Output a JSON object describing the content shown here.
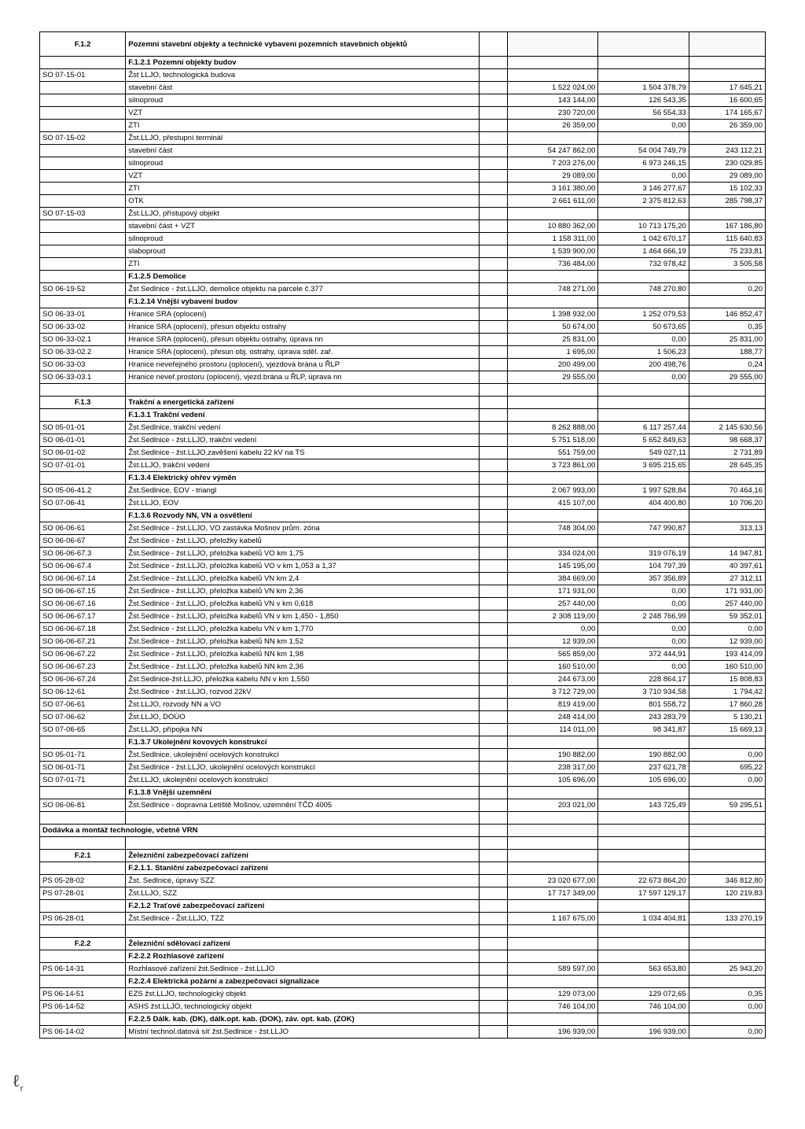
{
  "rows": [
    {
      "type": "header2",
      "code": "F.1.2",
      "desc": "Pozemní stavební objekty a technické vybavení pozemních stavebních objektů",
      "shaded": true
    },
    {
      "type": "sub",
      "desc": "F.1.2.1 Pozemní objekty budov",
      "bold": true
    },
    {
      "type": "data",
      "code": "SO 07-15-01",
      "desc": "Žst LLJO, technologická budova"
    },
    {
      "type": "data",
      "desc": "stavební část",
      "v1": "1 522 024,00",
      "v2": "1 504 378,79",
      "v3": "17 645,21"
    },
    {
      "type": "data",
      "desc": "silnoproud",
      "v1": "143 144,00",
      "v2": "126 543,35",
      "v3": "16 600,65"
    },
    {
      "type": "data",
      "desc": "VZT",
      "v1": "230 720,00",
      "v2": "56 554,33",
      "v3": "174 165,67"
    },
    {
      "type": "data",
      "desc": "ZTI",
      "v1": "26 359,00",
      "v2": "0,00",
      "v3": "26 359,00"
    },
    {
      "type": "data",
      "code": "SO 07-15-02",
      "desc": "Žst.LLJO, přestupní terminál"
    },
    {
      "type": "data",
      "desc": "stavební část",
      "v1": "54 247 862,00",
      "v2": "54 004 749,79",
      "v3": "243 112,21"
    },
    {
      "type": "data",
      "desc": "silnoproud",
      "v1": "7 203 276,00",
      "v2": "6 973 246,15",
      "v3": "230 029,85"
    },
    {
      "type": "data",
      "desc": "VZT",
      "v1": "29 089,00",
      "v2": "0,00",
      "v3": "29 089,00"
    },
    {
      "type": "data",
      "desc": "ZTI",
      "v1": "3 161 380,00",
      "v2": "3 146 277,67",
      "v3": "15 102,33"
    },
    {
      "type": "data",
      "desc": "OTK",
      "v1": "2 661 611,00",
      "v2": "2 375 812,63",
      "v3": "285 798,37"
    },
    {
      "type": "data",
      "code": "SO 07-15-03",
      "desc": "Žst.LLJO, přístupový objekt"
    },
    {
      "type": "data",
      "desc": "stavební část + VZT",
      "v1": "10 880 362,00",
      "v2": "10 713 175,20",
      "v3": "167 186,80"
    },
    {
      "type": "data",
      "desc": "silnoproud",
      "v1": "1 158 311,00",
      "v2": "1 042 670,17",
      "v3": "115 640,83"
    },
    {
      "type": "data",
      "desc": "slaboproud",
      "v1": "1 539 900,00",
      "v2": "1 464 666,19",
      "v3": "75 233,81"
    },
    {
      "type": "data",
      "desc": "ZTI",
      "v1": "736 484,00",
      "v2": "732 978,42",
      "v3": "3 505,58"
    },
    {
      "type": "sub",
      "desc": "F.1.2.5 Demolice",
      "bold": true
    },
    {
      "type": "data",
      "code": "SO 06-19-52",
      "desc": "Žst Sedlnice - žst.LLJO, demolice objektu na parcele č.377",
      "v1": "748 271,00",
      "v2": "748 270,80",
      "v3": "0,20"
    },
    {
      "type": "sub",
      "desc": "F.1.2.14 Vnější vybavení budov",
      "bold": true
    },
    {
      "type": "data",
      "code": "SO 06-33-01",
      "desc": "Hranice SRA (oplocení)",
      "v1": "1 398 932,00",
      "v2": "1 252 079,53",
      "v3": "146 852,47"
    },
    {
      "type": "data",
      "code": "SO 06-33-02",
      "desc": "Hranice SRA (oplocení), přesun objektu ostrahy",
      "v1": "50 674,00",
      "v2": "50 673,65",
      "v3": "0,35"
    },
    {
      "type": "data",
      "code": "SO 06-33-02.1",
      "desc": "Hranice SRA (oplocení), přesun objektu ostrahy, úprava nn",
      "v1": "25 831,00",
      "v2": "0,00",
      "v3": "25 831,00"
    },
    {
      "type": "data",
      "code": "SO 06-33-02.2",
      "desc": "Hranice SRA (oplocení), přesun obj. ostrahy, úprava sděl. zař.",
      "v1": "1 695,00",
      "v2": "1 506,23",
      "v3": "188,77"
    },
    {
      "type": "data",
      "code": "SO 06-33-03",
      "desc": "Hranice neveřejného prostoru (oplocení), vjezdová brána u ŘLP",
      "v1": "200 499,00",
      "v2": "200 498,76",
      "v3": "0,24"
    },
    {
      "type": "data",
      "code": "SO 06-33-03.1",
      "desc": "Hranice neveř.prostoru (oplocení), vjezd.brána u ŘLP, úprava nn",
      "v1": "29 555,00",
      "v2": "0,00",
      "v3": "29 555,00"
    },
    {
      "type": "blank"
    },
    {
      "type": "header1",
      "code": "F.1.3",
      "desc": "Trakční a energetická zařízení"
    },
    {
      "type": "sub",
      "desc": "F.1.3.1 Trakční vedení",
      "bold": true
    },
    {
      "type": "data",
      "code": "SO 05-01-01",
      "desc": "Žst.Sedlnice, trakční vedení",
      "v1": "8 262 888,00",
      "v2": "6 117 257,44",
      "v3": "2 145 630,56"
    },
    {
      "type": "data",
      "code": "SO 06-01-01",
      "desc": "Žst.Sedlnice - žst.LLJO, trakční vedení",
      "v1": "5 751 518,00",
      "v2": "5 652 849,63",
      "v3": "98 668,37"
    },
    {
      "type": "data",
      "code": "SO 06-01-02",
      "desc": "Žst.Sedlnice - žst.LLJO,zavěšení kabelu 22 kV na TS",
      "v1": "551 759,00",
      "v2": "549 027,11",
      "v3": "2 731,89"
    },
    {
      "type": "data",
      "code": "SO 07-01-01",
      "desc": "Žst.LLJO, trakční vedení",
      "v1": "3 723 861,00",
      "v2": "3 695 215,65",
      "v3": "28 645,35"
    },
    {
      "type": "sub",
      "desc": "F.1.3.4 Elektrický ohřev výměn",
      "bold": true
    },
    {
      "type": "data",
      "code": "SO 05-06-41.2",
      "desc": "Žst.Sedlnice, EOV - triangl",
      "v1": "2 067 993,00",
      "v2": "1 997 528,84",
      "v3": "70 464,16"
    },
    {
      "type": "data",
      "code": "SO 07-06-41",
      "desc": "Žst.LLJO, EOV",
      "v1": "415 107,00",
      "v2": "404 400,80",
      "v3": "10 706,20"
    },
    {
      "type": "sub",
      "desc": "F.1.3.6 Rozvody NN, VN a osvětlení",
      "bold": true
    },
    {
      "type": "data",
      "code": "SO 06-06-61",
      "desc": "Žst.Sedlnice - žst.LLJO, VO zastávka Mošnov prům. zóna",
      "v1": "748 304,00",
      "v2": "747 990,87",
      "v3": "313,13"
    },
    {
      "type": "data",
      "code": "SO 06-06-67",
      "desc": "Žst.Sedlnice - žst.LLJO, přeložky kabelů"
    },
    {
      "type": "data",
      "code": "SO 06-06-67.3",
      "desc": "Žst.Sedlnice - žst.LLJO, přeložka kabelů VO km 1,75",
      "v1": "334 024,00",
      "v2": "319 076,19",
      "v3": "14 947,81"
    },
    {
      "type": "data",
      "code": "SO 06-06-67.4",
      "desc": "Žst.Sedlnice - žst.LLJO, přeložka kabelů VO v km 1,053 a 1,37",
      "v1": "145 195,00",
      "v2": "104 797,39",
      "v3": "40 397,61"
    },
    {
      "type": "data",
      "code": "SO 06-06-67.14",
      "desc": "Žst.Sedlnice - žst.LLJO, přeložka kabelů VN km 2,4",
      "v1": "384 669,00",
      "v2": "357 356,89",
      "v3": "27 312,11"
    },
    {
      "type": "data",
      "code": "SO 06-06-67.15",
      "desc": "Žst.Sedlnice - žst.LLJO, přeložka kabelů VN km 2,36",
      "v1": "171 931,00",
      "v2": "0,00",
      "v3": "171 931,00"
    },
    {
      "type": "data",
      "code": "SO 06-06-67.16",
      "desc": "Žst.Sedlnice - žst.LLJO, přeložka kabelů VN v km 0,618",
      "v1": "257 440,00",
      "v2": "0,00",
      "v3": "257 440,00"
    },
    {
      "type": "data",
      "code": "SO 06-06-67.17",
      "desc": "Žst.Sedlnice - žst.LLJO, přeložka kabelů VN v km 1,450 - 1,850",
      "v1": "2 308 119,00",
      "v2": "2 248 766,99",
      "v3": "59 352,01"
    },
    {
      "type": "data",
      "code": "SO 06-06-67.18",
      "desc": "Žst.Sedlnice - žst.LLJO, přeložka kabelu VN v km 1,770",
      "v1": "0,00",
      "v2": "0,00",
      "v3": "0,00"
    },
    {
      "type": "data",
      "code": "SO 06-06-67.21",
      "desc": "Žst.Sedlnice - žst.LLJO, přeložka kabelů NN km 1,52",
      "v1": "12 939,00",
      "v2": "0,00",
      "v3": "12 939,00"
    },
    {
      "type": "data",
      "code": "SO 06-06-67.22",
      "desc": "Žst.Sedlnice - žst.LLJO, přeložka kabelů NN km 1,98",
      "v1": "565 859,00",
      "v2": "372 444,91",
      "v3": "193 414,09"
    },
    {
      "type": "data",
      "code": "SO 06-06-67.23",
      "desc": "Žst.Sedlnice - žst.LLJO, přeložka kabelů NN km 2,36",
      "v1": "160 510,00",
      "v2": "0,00",
      "v3": "160 510,00"
    },
    {
      "type": "data",
      "code": "SO 06-06-67.24",
      "desc": "Žst.Sedlnice-žst.LLJO, přeložka kabelu NN v km 1,550",
      "v1": "244 673,00",
      "v2": "228 864,17",
      "v3": "15 808,83"
    },
    {
      "type": "data",
      "code": "SO 06-12-61",
      "desc": "Žst.Sedlnice - žst.LLJO, rozvod 22kV",
      "v1": "3 712 729,00",
      "v2": "3 710 934,58",
      "v3": "1 794,42"
    },
    {
      "type": "data",
      "code": "SO 07-06-61",
      "desc": "Žst.LLJO, rozvody NN a VO",
      "v1": "819 419,00",
      "v2": "801 558,72",
      "v3": "17 860,28"
    },
    {
      "type": "data",
      "code": "SO 07-06-62",
      "desc": "Žst.LLJO, DOÚO",
      "v1": "248 414,00",
      "v2": "243 283,79",
      "v3": "5 130,21"
    },
    {
      "type": "data",
      "code": "SO 07-06-65",
      "desc": "Žst.LLJO, přípojka NN",
      "v1": "114 011,00",
      "v2": "98 341,87",
      "v3": "15 669,13"
    },
    {
      "type": "sub",
      "desc": "F.1.3.7 Ukolejnění kovových konstrukcí",
      "bold": true
    },
    {
      "type": "data",
      "code": "SO 05-01-71",
      "desc": "Žst.Sedlnice, ukolejnění ocelových konstrukcí",
      "v1": "190 882,00",
      "v2": "190 882,00",
      "v3": "0,00"
    },
    {
      "type": "data",
      "code": "SO 06-01-71",
      "desc": "Žst.Sedlnice - žst.LLJO, ukolejnění ocelových konstrukcí",
      "v1": "238 317,00",
      "v2": "237 621,78",
      "v3": "695,22"
    },
    {
      "type": "data",
      "code": "SO 07-01-71",
      "desc": "Žst.LLJO, ukolejnění ocelových konstrukcí",
      "v1": "105 696,00",
      "v2": "105 696,00",
      "v3": "0,00"
    },
    {
      "type": "sub",
      "desc": "F.1.3.8 Vnější uzemnění",
      "bold": true
    },
    {
      "type": "data",
      "code": "SO 06-06-81",
      "desc": "Žst.Sedlnice - dopravna Letiště Mošnov, uzemnění TČD 4005",
      "v1": "203 021,00",
      "v2": "143 725,49",
      "v3": "59 295,51"
    },
    {
      "type": "blank"
    },
    {
      "type": "full",
      "desc": "Dodávka a montáž technologie, včetně VRN",
      "bold": true,
      "shaded": true
    },
    {
      "type": "blank"
    },
    {
      "type": "header1",
      "code": "F.2.1",
      "desc": "Železniční zabezpečovací zařízení"
    },
    {
      "type": "sub",
      "desc": "F.2.1.1. Staniční zabezpečovací zařízení",
      "bold": true
    },
    {
      "type": "data",
      "code": "PS 05-28-02",
      "desc": "Žst. Sedlnice, úpravy SZZ",
      "v1": "23 020 677,00",
      "v2": "22 673 864,20",
      "v3": "346 812,80"
    },
    {
      "type": "data",
      "code": "PS 07-28-01",
      "desc": "Žst.LLJO, SZZ",
      "v1": "17 717 349,00",
      "v2": "17 597 129,17",
      "v3": "120 219,83"
    },
    {
      "type": "sub",
      "desc": "F.2.1.2 Traťové zabezpečovací zařízení",
      "bold": true
    },
    {
      "type": "data",
      "code": "PS 06-28-01",
      "desc": "Žst.Sedlnice - Žst.LLJO, TZZ",
      "v1": "1 167 675,00",
      "v2": "1 034 404,81",
      "v3": "133 270,19"
    },
    {
      "type": "blank"
    },
    {
      "type": "header1",
      "code": "F.2.2",
      "desc": "Železniční sdělovací zařízení"
    },
    {
      "type": "sub",
      "desc": "F.2.2.2 Rozhlasové zařízení",
      "bold": true
    },
    {
      "type": "data",
      "code": "PS 06-14-31",
      "desc": "Rozhlasové zařízení žst.Sedlnice - žst.LLJO",
      "v1": "589 597,00",
      "v2": "563 653,80",
      "v3": "25 943,20"
    },
    {
      "type": "sub",
      "desc": "F.2.2.4 Elektrická požární a zabezpečovací signalizace",
      "bold": true
    },
    {
      "type": "data",
      "code": "PS 06-14-51",
      "desc": "EZS  žst.LLJO, technologický objekt",
      "v1": "129 073,00",
      "v2": "129 072,65",
      "v3": "0,35"
    },
    {
      "type": "data",
      "code": "PS 06-14-52",
      "desc": "ASHS žst.LLJO, technologický objekt",
      "v1": "746 104,00",
      "v2": "746 104,00",
      "v3": "0,00"
    },
    {
      "type": "sub",
      "desc": "F.2.2.5 Dálk. kab. (DK), dálk.opt. kab. (DOK), záv. opt. kab. (ZOK)",
      "bold": true
    },
    {
      "type": "data",
      "code": "PS 06-14-02",
      "desc": "Místní technol.datová síť žst.Sedlnice - žst.LLJO",
      "v1": "196 939,00",
      "v2": "196 939,00",
      "v3": "0,00"
    }
  ]
}
